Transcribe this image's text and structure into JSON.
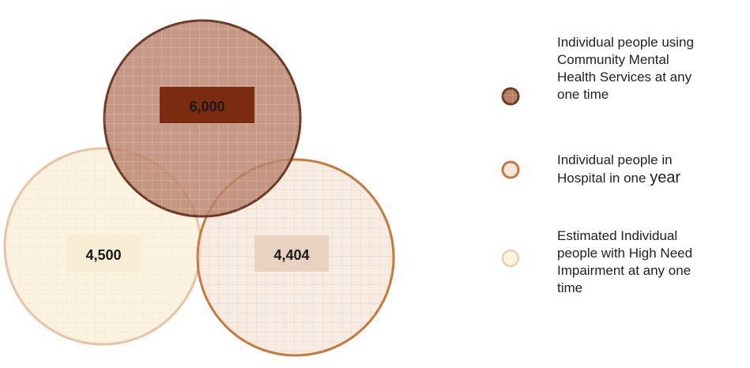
{
  "colors": {
    "community_fill": "#b88068",
    "community_stroke": "#6e3a24",
    "community_label_bg": "#7a2b10",
    "hospital_fill": "#f4e6da",
    "hospital_stroke": "#c8783a",
    "hospital_label_bg": "#ead2c0",
    "highneed_fill": "#fbf3df",
    "highneed_stroke": "#e9c3a4",
    "highneed_label_bg": "#f7ecd4"
  },
  "circles": {
    "community": {
      "value": "6,000"
    },
    "highneed": {
      "value": "4,500"
    },
    "hospital": {
      "value": "4,404"
    }
  },
  "legend": [
    {
      "text": "Individual people using\nCommunity Mental\nHealth Services at any\none time"
    },
    {
      "text_a": "Individual people in\nHospital in one ",
      "text_b": "year"
    },
    {
      "text": "Estimated Individual\npeople with High Need\nImpairment at any one\ntime"
    }
  ]
}
